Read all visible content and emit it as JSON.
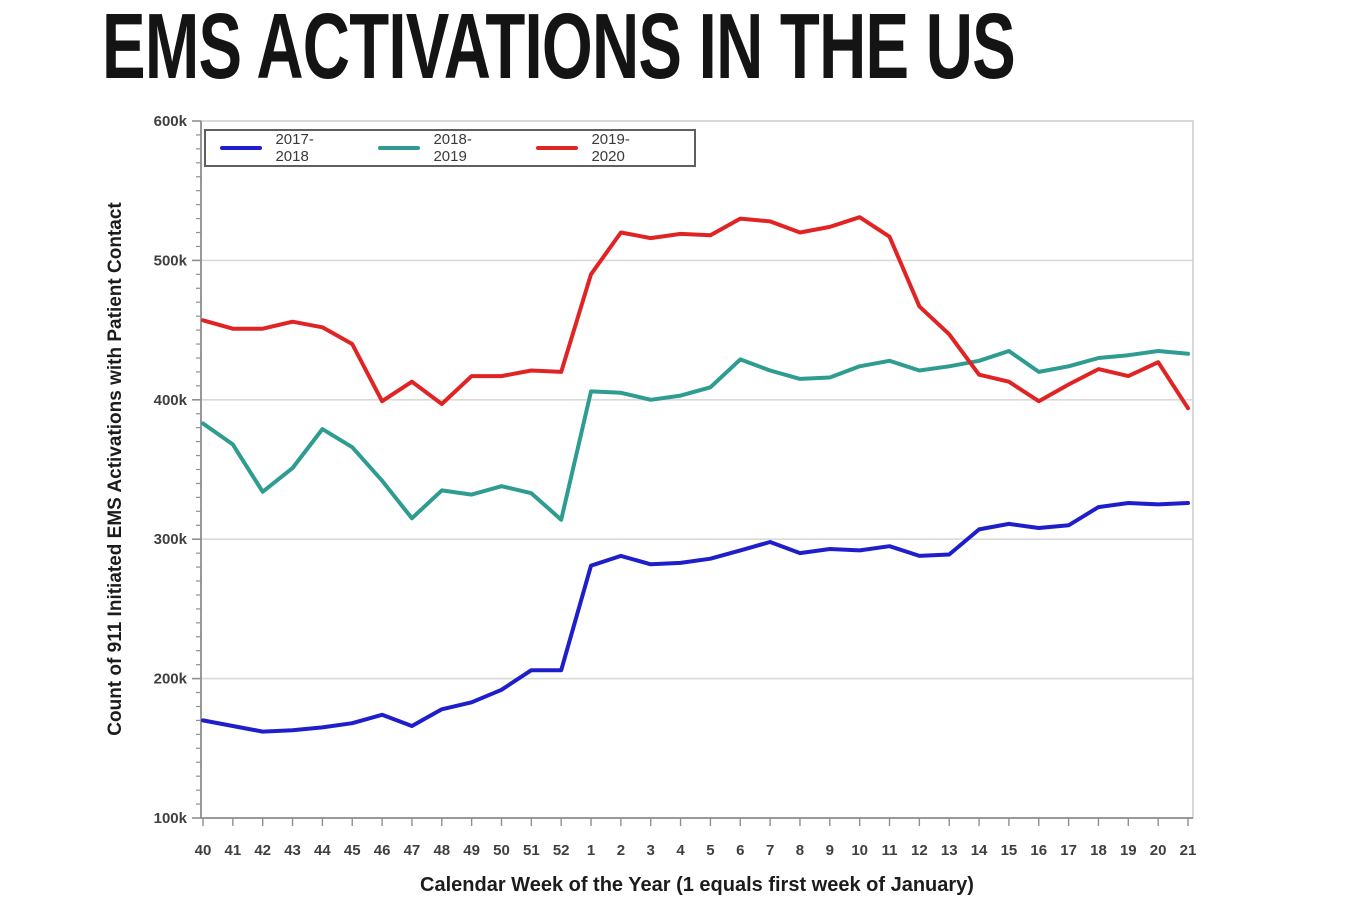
{
  "page": {
    "title": "EMS ACTIVATIONS IN THE US"
  },
  "chart_data": {
    "type": "line",
    "title": "EMS ACTIVATIONS IN THE US",
    "xlabel": "Calendar Week of the Year (1 equals first week of January)",
    "ylabel": "Count of 911 Initiated EMS Activations with Patient Contact",
    "y_unit": "thousands of activations",
    "ylim": [
      100,
      600
    ],
    "y_minor_step": 10,
    "grid": "horizontal",
    "legend_position": "top-left-inside",
    "x_categories": [
      "40",
      "41",
      "42",
      "43",
      "44",
      "45",
      "46",
      "47",
      "48",
      "49",
      "50",
      "51",
      "52",
      "1",
      "2",
      "3",
      "4",
      "5",
      "6",
      "7",
      "8",
      "9",
      "10",
      "11",
      "12",
      "13",
      "14",
      "15",
      "16",
      "17",
      "18",
      "19",
      "20",
      "21"
    ],
    "y_ticks": [
      {
        "value": 100,
        "label": "100k"
      },
      {
        "value": 200,
        "label": "200k"
      },
      {
        "value": 300,
        "label": "300k"
      },
      {
        "value": 400,
        "label": "400k"
      },
      {
        "value": 500,
        "label": "500k"
      },
      {
        "value": 600,
        "label": "600k"
      }
    ],
    "series": [
      {
        "name": "2017-2018",
        "color": "#1e1ecb",
        "values": [
          170,
          166,
          162,
          163,
          165,
          168,
          174,
          166,
          178,
          183,
          192,
          206,
          206,
          281,
          288,
          282,
          283,
          286,
          292,
          298,
          290,
          293,
          292,
          295,
          288,
          289,
          307,
          311,
          308,
          310,
          323,
          326,
          325,
          326
        ]
      },
      {
        "name": "2018-2019",
        "color": "#2e9c90",
        "values": [
          383,
          368,
          334,
          351,
          379,
          366,
          342,
          315,
          335,
          332,
          338,
          333,
          314,
          406,
          405,
          400,
          403,
          409,
          429,
          421,
          415,
          416,
          424,
          428,
          421,
          424,
          428,
          435,
          420,
          424,
          430,
          432,
          435,
          433
        ]
      },
      {
        "name": "2019-2020",
        "color": "#e02424",
        "values": [
          457,
          451,
          451,
          456,
          452,
          440,
          399,
          413,
          397,
          417,
          417,
          421,
          420,
          490,
          520,
          516,
          519,
          518,
          530,
          528,
          520,
          524,
          531,
          517,
          467,
          447,
          418,
          413,
          399,
          411,
          422,
          417,
          427,
          394
        ]
      }
    ],
    "style_colors": {
      "gridline": "#d9d9d9",
      "plot_border": "#c9c9c9",
      "axis_line": "#8f8f8f",
      "tick_label": "#3f3f3f",
      "legend_border": "#5f5f5f"
    }
  }
}
